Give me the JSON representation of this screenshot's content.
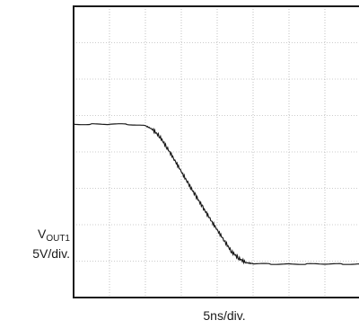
{
  "chart_data": {
    "type": "line",
    "grid": true,
    "x_divisions": 8,
    "y_divisions": 8,
    "xlabel": "5ns/div.",
    "ylabel_main": "V",
    "ylabel_sub": "OUT1",
    "ylabel_scale": "5V/div.",
    "trace_color": "#1a1a1a",
    "series": [
      {
        "x": [
          0,
          0.5,
          1.0,
          1.5,
          2.0,
          2.2,
          2.4,
          2.6,
          2.8,
          3.0,
          3.2,
          3.4,
          3.6,
          3.8,
          4.0,
          4.2,
          4.4,
          4.6,
          4.8,
          5.0,
          5.5,
          6.0,
          6.5,
          7.0,
          7.5,
          8.0
        ],
        "y": [
          4.76,
          4.76,
          4.76,
          4.76,
          4.72,
          4.62,
          4.42,
          4.12,
          3.8,
          3.46,
          3.12,
          2.8,
          2.48,
          2.16,
          1.86,
          1.56,
          1.26,
          1.08,
          0.96,
          0.93,
          0.92,
          0.92,
          0.92,
          0.92,
          0.92,
          0.92
        ]
      }
    ]
  }
}
